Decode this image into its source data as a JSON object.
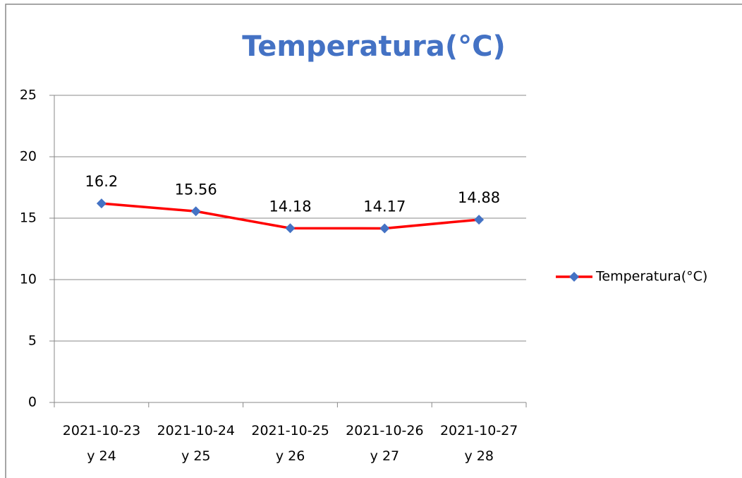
{
  "chart_data": {
    "type": "line",
    "title": "Temperatura(°C)",
    "categories": [
      "2021-10-23\ny 24",
      "2021-10-24\ny 25",
      "2021-10-25\ny 26",
      "2021-10-26\ny 27",
      "2021-10-27\ny 28"
    ],
    "series": [
      {
        "name": "Temperatura(°C)",
        "color": "#ff0000",
        "marker_color": "#4472c4",
        "values": [
          16.2,
          15.56,
          14.18,
          14.17,
          14.88
        ]
      }
    ],
    "ylim": [
      0,
      25
    ],
    "yticks": [
      0,
      5,
      10,
      15,
      20,
      25
    ],
    "grid": true,
    "legend": "right",
    "data_labels": true
  }
}
